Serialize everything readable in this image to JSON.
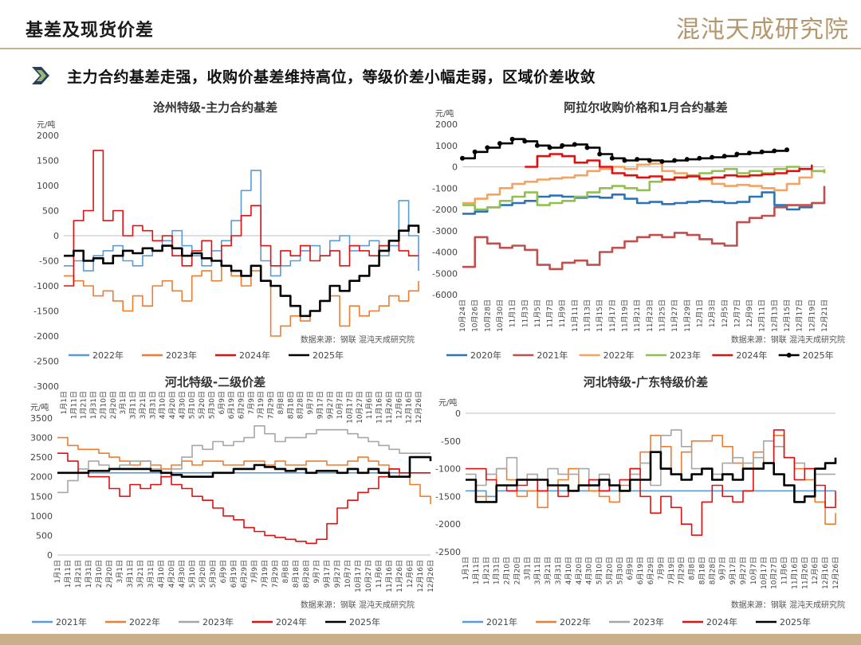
{
  "header": {
    "title": "基差及现货价差",
    "logo_text": "混沌天成研究院"
  },
  "subtitle": "主力合约基差走强，收购价基差维持高位，等级价差小幅走弱，区域价差收敛",
  "colors": {
    "accent": "#c9b08a",
    "chevron": "#2b3f5c"
  },
  "chart_data": [
    {
      "id": "c1",
      "type": "line",
      "title": "沧州特级-主力合约基差",
      "unit": "元/吨",
      "source": "数据来源：钢联   混沌天成研究院",
      "ylim": [
        -3000,
        2000
      ],
      "yticks": [
        2000,
        1500,
        1000,
        500,
        0,
        -500,
        -1000,
        -1500,
        -2000,
        -2500,
        -3000
      ],
      "xticks": [
        "1月1日",
        "1月11日",
        "1月21日",
        "1月31日",
        "2月10日",
        "2月20日",
        "3月1日",
        "3月11日",
        "3月21日",
        "3月31日",
        "4月10日",
        "4月20日",
        "4月30日",
        "5月10日",
        "5月20日",
        "5月30日",
        "6月9日",
        "6月19日",
        "6月29日",
        "7月9日",
        "7月19日",
        "7月29日",
        "8月8日",
        "8月18日",
        "8月28日",
        "9月7日",
        "9月17日",
        "9月27日",
        "10月7日",
        "10月17日",
        "10月27日",
        "11月6日",
        "11月16日",
        "11月26日",
        "12月6日",
        "12月16日",
        "12月26日"
      ],
      "series": [
        {
          "name": "2022年",
          "color": "#5b9bd5",
          "values": [
            -600,
            -500,
            -700,
            -400,
            -300,
            -200,
            -500,
            -600,
            -400,
            -300,
            -100,
            100,
            -200,
            -400,
            -600,
            -300,
            -100,
            300,
            900,
            1300,
            -500,
            -800,
            -600,
            -500,
            -300,
            -200,
            -400,
            -100,
            0,
            -300,
            -200,
            -100,
            -400,
            -200,
            700,
            0,
            -700
          ]
        },
        {
          "name": "2023年",
          "color": "#ed7d31",
          "values": [
            -800,
            -900,
            -1000,
            -1200,
            -1100,
            -1300,
            -1500,
            -1200,
            -1400,
            -1000,
            -900,
            -1100,
            -1300,
            -800,
            -700,
            -900,
            -600,
            -800,
            -1000,
            -700,
            -900,
            -2000,
            -1800,
            -1600,
            -1700,
            -1500,
            -1300,
            -1200,
            -1800,
            -1400,
            -1600,
            -1500,
            -1400,
            -1200,
            -1300,
            -1100,
            -900
          ]
        },
        {
          "name": "2024年",
          "color": "#e01010",
          "values": [
            -1000,
            300,
            500,
            1700,
            300,
            500,
            0,
            200,
            100,
            -100,
            0,
            -400,
            -600,
            -300,
            -100,
            -500,
            -200,
            0,
            400,
            600,
            -200,
            -600,
            -300,
            -400,
            -200,
            -500,
            -400,
            -300,
            -600,
            -200,
            -300,
            -400,
            -200,
            -100,
            -300,
            -400,
            -400
          ]
        },
        {
          "name": "2025年",
          "color": "#000000",
          "values": [
            -400,
            -300,
            -500,
            -450,
            -550,
            -400,
            -300,
            -350,
            -250,
            -300,
            -200,
            -250,
            -400,
            -350,
            -450,
            -500,
            -600,
            -700,
            -800,
            -600,
            -900,
            -1000,
            -1200,
            -1400,
            -1600,
            -1500,
            -1300,
            -1000,
            -1100,
            -900,
            -800,
            -600,
            -300,
            -100,
            100,
            200,
            50
          ]
        }
      ]
    },
    {
      "id": "c2",
      "type": "line",
      "title": "阿拉尔收购价格和1月合约基差",
      "unit": "元/吨",
      "source": "数据来源：钢联   混沌天成研究院",
      "ylim": [
        -6000,
        2000
      ],
      "yticks": [
        2000,
        1000,
        0,
        -1000,
        -2000,
        -3000,
        -4000,
        -5000,
        -6000
      ],
      "xticks": [
        "10月24日",
        "10月26日",
        "10月28日",
        "10月30日",
        "11月1日",
        "11月3日",
        "11月5日",
        "11月7日",
        "11月9日",
        "11月11日",
        "11月13日",
        "11月15日",
        "11月17日",
        "11月19日",
        "11月21日",
        "11月23日",
        "11月25日",
        "11月27日",
        "11月29日",
        "12月1日",
        "12月3日",
        "12月5日",
        "12月7日",
        "12月9日",
        "12月11日",
        "12月13日",
        "12月15日",
        "12月17日",
        "12月19日",
        "12月21日"
      ],
      "series": [
        {
          "name": "2020年",
          "color": "#2e74b5",
          "values": [
            -2200,
            -2100,
            -1900,
            -1800,
            -1700,
            -1600,
            -1400,
            -1350,
            -1400,
            -1450,
            -1400,
            -1450,
            -1300,
            -1500,
            -1700,
            -1650,
            -1750,
            -1700,
            -1650,
            -1600,
            -1650,
            -1700,
            -1650,
            -1400,
            -1200,
            -1800,
            -2000,
            -1900,
            -1700,
            -1600
          ]
        },
        {
          "name": "2021年",
          "color": "#c0504d",
          "values": [
            -4700,
            -3300,
            -3600,
            -3800,
            -3700,
            -3900,
            -4600,
            -4800,
            -4500,
            -4400,
            -4600,
            -4000,
            -3800,
            -3500,
            -3300,
            -3200,
            -3300,
            -3100,
            -3200,
            -3400,
            -3600,
            -3700,
            -2600,
            -2400,
            -2300,
            -1900,
            -1800,
            -1800,
            -1700,
            -900
          ]
        },
        {
          "name": "2022年",
          "color": "#f4a460",
          "values": [
            -1700,
            -1500,
            -1300,
            -1000,
            -800,
            -700,
            -600,
            -550,
            -500,
            -400,
            -200,
            -100,
            0,
            -100,
            100,
            150,
            -200,
            -300,
            -400,
            -600,
            -800,
            -900,
            -850,
            -900,
            -1000,
            -1100,
            -800,
            -500,
            -200,
            -100
          ]
        },
        {
          "name": "2023年",
          "color": "#92c050",
          "values": [
            -1800,
            -2000,
            -1900,
            -1600,
            -1400,
            -1200,
            -1800,
            -1700,
            -1600,
            -1400,
            -1200,
            -1000,
            -900,
            -1000,
            -1100,
            -700,
            -600,
            -500,
            -400,
            -300,
            -200,
            -100,
            -300,
            -200,
            -300,
            -100,
            0,
            -100,
            -200,
            -300
          ]
        },
        {
          "name": "2024年",
          "color": "#e01010",
          "values": [
            null,
            null,
            null,
            null,
            null,
            0,
            500,
            600,
            500,
            200,
            300,
            0,
            -300,
            -400,
            -500,
            -450,
            -600,
            -500,
            -450,
            -550,
            -500,
            -400,
            -450,
            -400,
            -350,
            -300,
            -200,
            -100,
            100,
            null
          ]
        },
        {
          "name": "2025年",
          "color": "#000000",
          "values": [
            400,
            700,
            900,
            1100,
            1300,
            1200,
            1000,
            900,
            1000,
            1050,
            900,
            600,
            400,
            300,
            350,
            300,
            250,
            300,
            350,
            400,
            450,
            500,
            600,
            650,
            700,
            750,
            800,
            null,
            null,
            null
          ]
        }
      ]
    },
    {
      "id": "c3",
      "type": "line",
      "title": "河北特级-二级价差",
      "unit": "元/吨",
      "source": "数据来源：钢联   混沌天成研究院",
      "ylim": [
        0,
        3500
      ],
      "yticks": [
        3500,
        3000,
        2500,
        2000,
        1500,
        1000,
        500,
        0
      ],
      "xticks": [
        "1月1日",
        "1月11日",
        "1月21日",
        "1月31日",
        "2月10日",
        "2月20日",
        "3月1日",
        "3月11日",
        "3月21日",
        "3月31日",
        "4月10日",
        "4月20日",
        "4月30日",
        "5月10日",
        "5月20日",
        "5月30日",
        "6月9日",
        "6月19日",
        "6月29日",
        "7月9日",
        "7月19日",
        "7月29日",
        "8月8日",
        "8月18日",
        "8月28日",
        "9月7日",
        "9月17日",
        "9月27日",
        "10月7日",
        "10月17日",
        "10月27日",
        "11月6日",
        "11月16日",
        "11月26日",
        "12月6日",
        "12月16日",
        "12月26日"
      ],
      "series": [
        {
          "name": "2021年",
          "color": "#5b9bd5",
          "values": [
            2100,
            2100,
            2100,
            2100,
            2100,
            2100,
            2100,
            2100,
            2100,
            2100,
            2100,
            2100,
            2100,
            2100,
            2100,
            2100,
            2100,
            2100,
            2100,
            2100,
            2100,
            2100,
            2100,
            2100,
            2100,
            2100,
            2100,
            2100,
            2100,
            2100,
            2100,
            2100,
            2100,
            2100,
            2100,
            2100,
            2100
          ]
        },
        {
          "name": "2022年",
          "color": "#ed7d31",
          "values": [
            3000,
            2800,
            2700,
            2700,
            2600,
            2500,
            2400,
            2300,
            2400,
            2300,
            2200,
            2300,
            2400,
            2300,
            2400,
            2400,
            2300,
            2300,
            2400,
            2400,
            2300,
            2400,
            2300,
            2300,
            2400,
            2400,
            2300,
            2300,
            2400,
            2500,
            2400,
            2300,
            2200,
            2000,
            1800,
            1500,
            1300
          ]
        },
        {
          "name": "2023年",
          "color": "#a6a6a6",
          "values": [
            1600,
            1900,
            2200,
            2400,
            2300,
            2200,
            2300,
            2400,
            2400,
            2200,
            2000,
            2200,
            2500,
            2800,
            2700,
            2900,
            2800,
            2900,
            3000,
            3300,
            3100,
            2900,
            3000,
            3000,
            3100,
            3200,
            3200,
            3200,
            3100,
            3000,
            2900,
            2800,
            2700,
            2600,
            2600,
            2600,
            2600
          ]
        },
        {
          "name": "2024年",
          "color": "#e01010",
          "values": [
            2600,
            2400,
            2100,
            2000,
            2000,
            1700,
            1500,
            1800,
            1700,
            1800,
            2000,
            1800,
            1700,
            1500,
            1400,
            1200,
            1000,
            900,
            700,
            600,
            500,
            450,
            400,
            350,
            300,
            400,
            800,
            1200,
            1400,
            1600,
            1700,
            2000,
            2200,
            2100,
            2100,
            2100,
            2100
          ]
        },
        {
          "name": "2025年",
          "color": "#000000",
          "values": [
            2100,
            2100,
            2100,
            2150,
            2150,
            2200,
            2200,
            2200,
            2200,
            2150,
            2100,
            2050,
            2000,
            2000,
            2000,
            2100,
            2100,
            2200,
            2200,
            2300,
            2250,
            2200,
            2150,
            2200,
            2100,
            2150,
            2150,
            2100,
            2200,
            2100,
            2200,
            2100,
            2000,
            2000,
            2500,
            2500,
            2400
          ]
        }
      ]
    },
    {
      "id": "c4",
      "type": "line",
      "title": "河北特级-广东特级价差",
      "unit": "元/吨",
      "source": "数据来源：钢联   混沌天成研究院",
      "ylim": [
        -2500,
        0
      ],
      "yticks": [
        0,
        -500,
        -1000,
        -1500,
        -2000,
        -2500
      ],
      "xticks": [
        "1月1日",
        "1月11日",
        "1月21日",
        "1月31日",
        "2月10日",
        "2月20日",
        "3月1日",
        "3月11日",
        "3月21日",
        "3月31日",
        "4月10日",
        "4月20日",
        "4月30日",
        "5月10日",
        "5月20日",
        "5月30日",
        "6月9日",
        "6月19日",
        "6月29日",
        "7月9日",
        "7月19日",
        "7月29日",
        "8月8日",
        "8月18日",
        "8月28日",
        "9月7日",
        "9月17日",
        "9月27日",
        "10月7日",
        "10月17日",
        "10月27日",
        "11月6日",
        "11月16日",
        "11月26日",
        "12月6日",
        "12月16日",
        "12月26日"
      ],
      "series": [
        {
          "name": "2021年",
          "color": "#5b9bd5",
          "values": [
            -1400,
            -1400,
            -1500,
            -1400,
            -1400,
            -1400,
            -1400,
            -1400,
            -1400,
            -1400,
            -1400,
            -1400,
            -1400,
            -1400,
            -1400,
            -1400,
            -1400,
            -1400,
            -1400,
            -1400,
            -1400,
            -1400,
            -1400,
            -1400,
            -1400,
            -1400,
            -1400,
            -1400,
            -1400,
            -1400,
            -1400,
            -1400,
            -1400,
            -1400,
            -1400,
            -1400,
            -1400
          ]
        },
        {
          "name": "2022年",
          "color": "#ed7d31",
          "values": [
            -1200,
            -1500,
            -1600,
            -1000,
            -1200,
            -1500,
            -1400,
            -1700,
            -1300,
            -1200,
            -1000,
            -1300,
            -1400,
            -1500,
            -1600,
            -1300,
            -1000,
            -700,
            -400,
            -600,
            -1100,
            -700,
            -500,
            -500,
            -400,
            -600,
            -900,
            -1000,
            -700,
            -900,
            -400,
            -800,
            -1000,
            -1200,
            -1600,
            -2000,
            -1800
          ]
        },
        {
          "name": "2023年",
          "color": "#a6a6a6",
          "values": [
            -1100,
            -1300,
            -1100,
            -1000,
            -800,
            -1200,
            -1100,
            -1200,
            -1000,
            -1100,
            -1100,
            -1000,
            -1200,
            -1100,
            -1300,
            -1200,
            -1100,
            -900,
            -1300,
            -400,
            -300,
            -600,
            -1000,
            -1000,
            -1100,
            -900,
            -800,
            -900,
            -800,
            -500,
            -600,
            -800,
            -900,
            -1000,
            -1100,
            -1100,
            -1100
          ]
        },
        {
          "name": "2024年",
          "color": "#e01010",
          "values": [
            -1000,
            -1000,
            -1200,
            -1300,
            -1400,
            -1300,
            -1200,
            -1400,
            -1300,
            -1500,
            -1400,
            -1300,
            -1200,
            -1400,
            -1300,
            -1200,
            -1000,
            -1500,
            -1800,
            -1500,
            -1700,
            -2000,
            -2200,
            -1600,
            -1300,
            -1500,
            -1600,
            -1400,
            -1000,
            -900,
            -300,
            -800,
            -1200,
            -1000,
            -1300,
            -1700,
            -1400
          ]
        },
        {
          "name": "2025年",
          "color": "#000000",
          "values": [
            -1200,
            -1600,
            -1600,
            -1300,
            -1300,
            -1200,
            -1200,
            -1200,
            -1300,
            -1300,
            -1400,
            -1300,
            -1300,
            -1200,
            -1300,
            -1400,
            -1200,
            -1200,
            -700,
            -1000,
            -1100,
            -1200,
            -1100,
            -1000,
            -1200,
            -1100,
            -1200,
            -1000,
            -1000,
            -900,
            -1100,
            -1300,
            -1600,
            -1500,
            -1000,
            -900,
            -800
          ]
        }
      ]
    }
  ]
}
